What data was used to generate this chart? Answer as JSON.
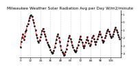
{
  "title": "Milwaukee Weather Solar Radiation Avg per Day W/m2/minute",
  "line_color": "#ff0000",
  "marker_color": "#000000",
  "bg_color": "#ffffff",
  "grid_color": "#aaaaaa",
  "ylim_min": -4.5,
  "ylim_max": 1.5,
  "y_values": [
    -3.2,
    -2.5,
    -2.0,
    -1.5,
    -2.2,
    -1.8,
    -1.2,
    -1.0,
    -0.5,
    -0.2,
    0.2,
    0.5,
    0.8,
    0.9,
    0.7,
    0.3,
    -0.1,
    -0.5,
    -1.0,
    -1.6,
    -2.0,
    -2.4,
    -2.6,
    -2.3,
    -1.9,
    -1.5,
    -1.1,
    -0.8,
    -1.2,
    -1.5,
    -1.8,
    -2.2,
    -2.6,
    -2.8,
    -3.0,
    -3.2,
    -3.5,
    -3.8,
    -4.0,
    -3.9,
    -3.6,
    -3.2,
    -2.7,
    -2.2,
    -1.8,
    -1.5,
    -2.0,
    -2.5,
    -3.0,
    -3.5,
    -3.8,
    -4.0,
    -4.2,
    -4.1,
    -3.8,
    -3.4,
    -2.9,
    -2.4,
    -2.0,
    -1.7,
    -2.1,
    -2.5,
    -2.9,
    -3.2,
    -3.5,
    -3.7,
    -3.8,
    -3.6,
    -3.3,
    -2.9,
    -2.5,
    -2.1,
    -1.8,
    -2.2,
    -2.6,
    -3.0,
    -3.3,
    -3.0,
    -2.6,
    -2.2,
    -1.9,
    -2.3,
    -2.7,
    -3.0,
    -2.8,
    -2.4,
    -2.0,
    -1.7,
    -2.1,
    -2.5,
    -2.8,
    -2.5,
    -2.1,
    -1.8,
    -1.5,
    -1.2,
    -1.5,
    -1.9,
    -2.3,
    -2.6,
    -2.4,
    -2.0,
    -1.7,
    -1.4,
    -1.1,
    -0.9,
    -1.2,
    -1.5,
    -1.8,
    -2.0,
    -1.8,
    -1.5,
    -1.2,
    -0.9,
    -0.7,
    -1.0,
    -1.3,
    -1.6,
    -1.9,
    -2.1
  ],
  "tick_interval": 12,
  "title_fontsize": 4.2,
  "tick_fontsize": 3.0,
  "ytick_labels": [
    "1",
    "0",
    "-1",
    "-2",
    "-3",
    "-4"
  ],
  "ytick_values": [
    1,
    0,
    -1,
    -2,
    -3,
    -4
  ]
}
